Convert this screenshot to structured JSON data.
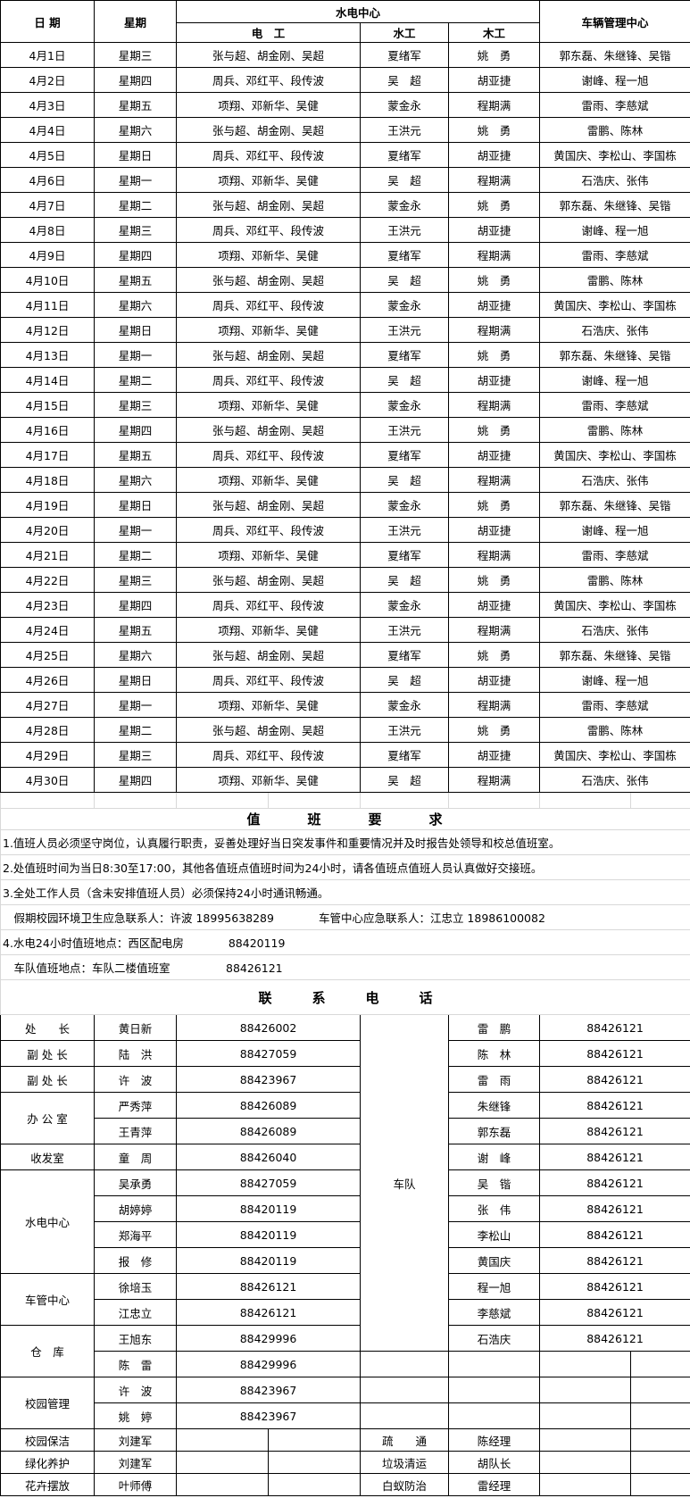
{
  "schedule": {
    "headers": {
      "date": "日 期",
      "weekday": "星期",
      "water_elec_center": "水电中心",
      "electrician": "电　工",
      "plumber": "水工",
      "carpenter": "木工",
      "vehicle_center": "车辆管理中心"
    },
    "rows": [
      [
        "4月1日",
        "星期三",
        "张与超、胡金刚、吴超",
        "夏绪军",
        "姚　勇",
        "郭东磊、朱继锋、吴锴"
      ],
      [
        "4月2日",
        "星期四",
        "周兵、邓红平、段传波",
        "吴　超",
        "胡亚捷",
        "谢峰、程一旭"
      ],
      [
        "4月3日",
        "星期五",
        "项翔、邓新华、吴健",
        "蒙金永",
        "程期满",
        "雷雨、李慈斌"
      ],
      [
        "4月4日",
        "星期六",
        "张与超、胡金刚、吴超",
        "王洪元",
        "姚　勇",
        "雷鹏、陈林"
      ],
      [
        "4月5日",
        "星期日",
        "周兵、邓红平、段传波",
        "夏绪军",
        "胡亚捷",
        "黄国庆、李松山、李国栋"
      ],
      [
        "4月6日",
        "星期一",
        "项翔、邓新华、吴健",
        "吴　超",
        "程期满",
        "石浩庆、张伟"
      ],
      [
        "4月7日",
        "星期二",
        "张与超、胡金刚、吴超",
        "蒙金永",
        "姚　勇",
        "郭东磊、朱继锋、吴锴"
      ],
      [
        "4月8日",
        "星期三",
        "周兵、邓红平、段传波",
        "王洪元",
        "胡亚捷",
        "谢峰、程一旭"
      ],
      [
        "4月9日",
        "星期四",
        "项翔、邓新华、吴健",
        "夏绪军",
        "程期满",
        "雷雨、李慈斌"
      ],
      [
        "4月10日",
        "星期五",
        "张与超、胡金刚、吴超",
        "吴　超",
        "姚　勇",
        "雷鹏、陈林"
      ],
      [
        "4月11日",
        "星期六",
        "周兵、邓红平、段传波",
        "蒙金永",
        "胡亚捷",
        "黄国庆、李松山、李国栋"
      ],
      [
        "4月12日",
        "星期日",
        "项翔、邓新华、吴健",
        "王洪元",
        "程期满",
        "石浩庆、张伟"
      ],
      [
        "4月13日",
        "星期一",
        "张与超、胡金刚、吴超",
        "夏绪军",
        "姚　勇",
        "郭东磊、朱继锋、吴锴"
      ],
      [
        "4月14日",
        "星期二",
        "周兵、邓红平、段传波",
        "吴　超",
        "胡亚捷",
        "谢峰、程一旭"
      ],
      [
        "4月15日",
        "星期三",
        "项翔、邓新华、吴健",
        "蒙金永",
        "程期满",
        "雷雨、李慈斌"
      ],
      [
        "4月16日",
        "星期四",
        "张与超、胡金刚、吴超",
        "王洪元",
        "姚　勇",
        "雷鹏、陈林"
      ],
      [
        "4月17日",
        "星期五",
        "周兵、邓红平、段传波",
        "夏绪军",
        "胡亚捷",
        "黄国庆、李松山、李国栋"
      ],
      [
        "4月18日",
        "星期六",
        "项翔、邓新华、吴健",
        "吴　超",
        "程期满",
        "石浩庆、张伟"
      ],
      [
        "4月19日",
        "星期日",
        "张与超、胡金刚、吴超",
        "蒙金永",
        "姚　勇",
        "郭东磊、朱继锋、吴锴"
      ],
      [
        "4月20日",
        "星期一",
        "周兵、邓红平、段传波",
        "王洪元",
        "胡亚捷",
        "谢峰、程一旭"
      ],
      [
        "4月21日",
        "星期二",
        "项翔、邓新华、吴健",
        "夏绪军",
        "程期满",
        "雷雨、李慈斌"
      ],
      [
        "4月22日",
        "星期三",
        "张与超、胡金刚、吴超",
        "吴　超",
        "姚　勇",
        "雷鹏、陈林"
      ],
      [
        "4月23日",
        "星期四",
        "周兵、邓红平、段传波",
        "蒙金永",
        "胡亚捷",
        "黄国庆、李松山、李国栋"
      ],
      [
        "4月24日",
        "星期五",
        "项翔、邓新华、吴健",
        "王洪元",
        "程期满",
        "石浩庆、张伟"
      ],
      [
        "4月25日",
        "星期六",
        "张与超、胡金刚、吴超",
        "夏绪军",
        "姚　勇",
        "郭东磊、朱继锋、吴锴"
      ],
      [
        "4月26日",
        "星期日",
        "周兵、邓红平、段传波",
        "吴　超",
        "胡亚捷",
        "谢峰、程一旭"
      ],
      [
        "4月27日",
        "星期一",
        "项翔、邓新华、吴健",
        "蒙金永",
        "程期满",
        "雷雨、李慈斌"
      ],
      [
        "4月28日",
        "星期二",
        "张与超、胡金刚、吴超",
        "王洪元",
        "姚　勇",
        "雷鹏、陈林"
      ],
      [
        "4月29日",
        "星期三",
        "周兵、邓红平、段传波",
        "夏绪军",
        "胡亚捷",
        "黄国庆、李松山、李国栋"
      ],
      [
        "4月30日",
        "星期四",
        "项翔、邓新华、吴健",
        "吴　超",
        "程期满",
        "石浩庆、张伟"
      ]
    ]
  },
  "requirements": {
    "title": "值　　　班　　　要　　　求",
    "lines": [
      "1.值班人员必须坚守岗位，认真履行职责，妥善处理好当日突发事件和重要情况并及时报告处领导和校总值班室。",
      "2.处值班时间为当日8:30至17:00，其他各值班点值班时间为24小时，请各值班点值班人员认真做好交接班。",
      "3.全处工作人员（含未安排值班人员）必须保持24小时通讯畅通。",
      "　假期校园环境卫生应急联系人：许波 18995638289　　　　车管中心应急联系人：江忠立 18986100082",
      "4.水电24小时值班地点：西区配电房　　　　88420119",
      "　车队值班地点：车队二楼值班室　　　　　88426121"
    ]
  },
  "contacts": {
    "title": "联　　　系　　　电　　　话",
    "fleet_label": "车队",
    "groups": [
      {
        "label": "处　　长",
        "people": [
          [
            "黄日新",
            "88426002"
          ]
        ]
      },
      {
        "label": "副 处 长",
        "people": [
          [
            "陆　洪",
            "88427059"
          ]
        ]
      },
      {
        "label": "副 处 长",
        "people": [
          [
            "许　波",
            "88423967"
          ]
        ]
      },
      {
        "label": "办 公 室",
        "people": [
          [
            "严秀萍",
            "88426089"
          ],
          [
            "王青萍",
            "88426089"
          ]
        ]
      },
      {
        "label": "收发室",
        "people": [
          [
            "童　周",
            "88426040"
          ]
        ]
      },
      {
        "label": "水电中心",
        "people": [
          [
            "吴承勇",
            "88427059"
          ],
          [
            "胡婷婷",
            "88420119"
          ],
          [
            "郑海平",
            "88420119"
          ],
          [
            "报　修",
            "88420119"
          ]
        ]
      },
      {
        "label": "车管中心",
        "people": [
          [
            "徐培玉",
            "88426121"
          ],
          [
            "江忠立",
            "88426121"
          ]
        ]
      },
      {
        "label": "仓　库",
        "people": [
          [
            "王旭东",
            "88429996"
          ],
          [
            "陈　雷",
            "88429996"
          ]
        ]
      },
      {
        "label": "校园管理",
        "people": [
          [
            "许　波",
            "88423967"
          ],
          [
            "姚　婷",
            "88423967"
          ]
        ]
      }
    ],
    "fleet": [
      [
        "雷　鹏",
        "88426121"
      ],
      [
        "陈　林",
        "88426121"
      ],
      [
        "雷　雨",
        "88426121"
      ],
      [
        "朱继锋",
        "88426121"
      ],
      [
        "郭东磊",
        "88426121"
      ],
      [
        "谢　峰",
        "88426121"
      ],
      [
        "吴　锴",
        "88426121"
      ],
      [
        "张　伟",
        "88426121"
      ],
      [
        "李松山",
        "88426121"
      ],
      [
        "黄国庆",
        "88426121"
      ],
      [
        "程一旭",
        "88426121"
      ],
      [
        "李慈斌",
        "88426121"
      ],
      [
        "石浩庆",
        "88426121"
      ]
    ],
    "services": [
      [
        [
          "校园保洁",
          "刘建军"
        ],
        [
          "疏　　通",
          "陈经理"
        ]
      ],
      [
        [
          "绿化养护",
          "刘建军"
        ],
        [
          "垃圾清运",
          "胡队长"
        ]
      ],
      [
        [
          "花卉摆放",
          "叶师傅"
        ],
        [
          "白蚁防治",
          "雷经理"
        ]
      ]
    ]
  }
}
